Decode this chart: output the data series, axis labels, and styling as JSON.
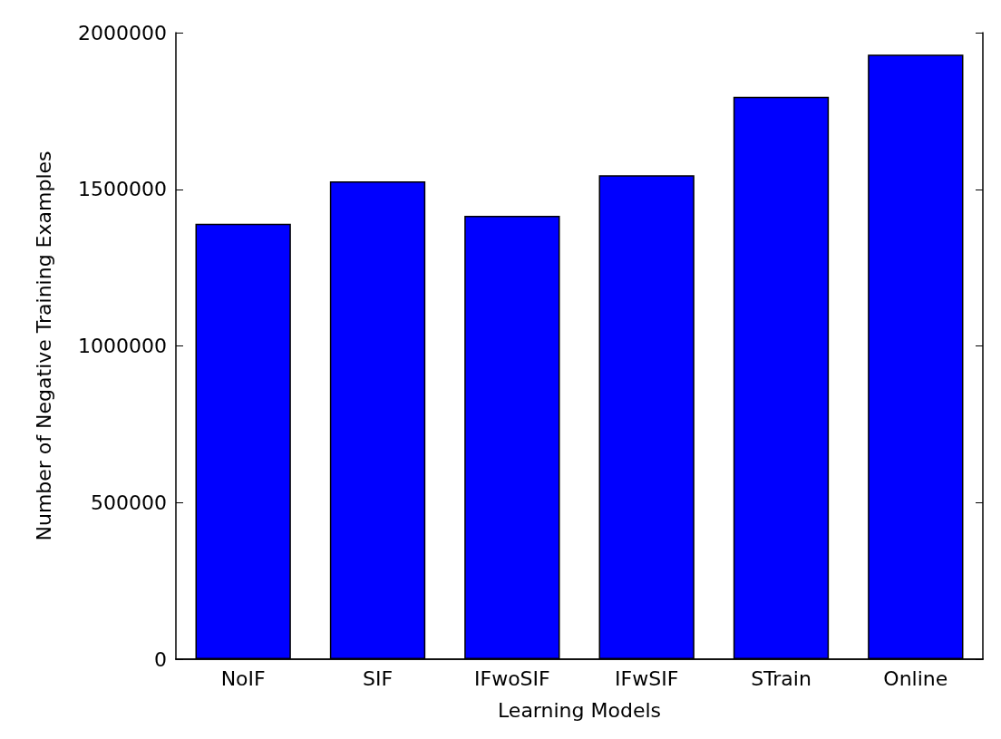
{
  "chart_data": {
    "type": "bar",
    "xlabel": "Learning Models",
    "ylabel": "Number of Negative Training Examples",
    "categories": [
      "NoIF",
      "SIF",
      "IFwoSIF",
      "IFwSIF",
      "STrain",
      "Online"
    ],
    "values": [
      1390000,
      1525000,
      1415000,
      1545000,
      1795000,
      1930000
    ],
    "color": "#0000ff",
    "ylim": [
      0,
      2000000
    ],
    "yticks": [
      0,
      500000,
      1000000,
      1500000,
      2000000
    ],
    "grid": false
  }
}
